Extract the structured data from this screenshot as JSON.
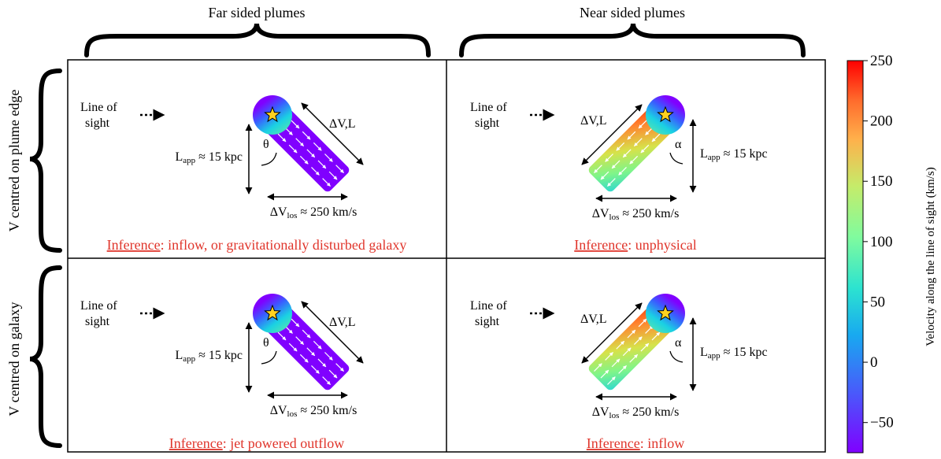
{
  "columns": [
    "Far sided plumes",
    "Near sided plumes"
  ],
  "rows": [
    "V centred on plume edge",
    "V centred on galaxy"
  ],
  "panel_text": {
    "los_line1": "Line of",
    "los_line2": "sight",
    "dv_l": "ΔV,L",
    "theta": "θ",
    "alpha": "α",
    "lapp_main": "L",
    "lapp_sub": "app",
    "lapp_rest": " ≈ 15 kpc",
    "dvlos_main": "ΔV",
    "dvlos_sub": "los",
    "dvlos_rest": " ≈ 250 km/s",
    "inference_word": "Inference"
  },
  "inferences": {
    "far_edge": ": inflow, or gravitationally disturbed galaxy",
    "near_edge": ": unphysical",
    "far_galaxy": ": jet powered outflow",
    "near_galaxy": ": inflow"
  },
  "colorbar": {
    "label": "Velocity along the line of sight (km/s)",
    "ticks": [
      "250",
      "200",
      "150",
      "100",
      "50",
      "0",
      "−50"
    ],
    "min": -75,
    "max": 250,
    "colormap": "rainbow"
  }
}
